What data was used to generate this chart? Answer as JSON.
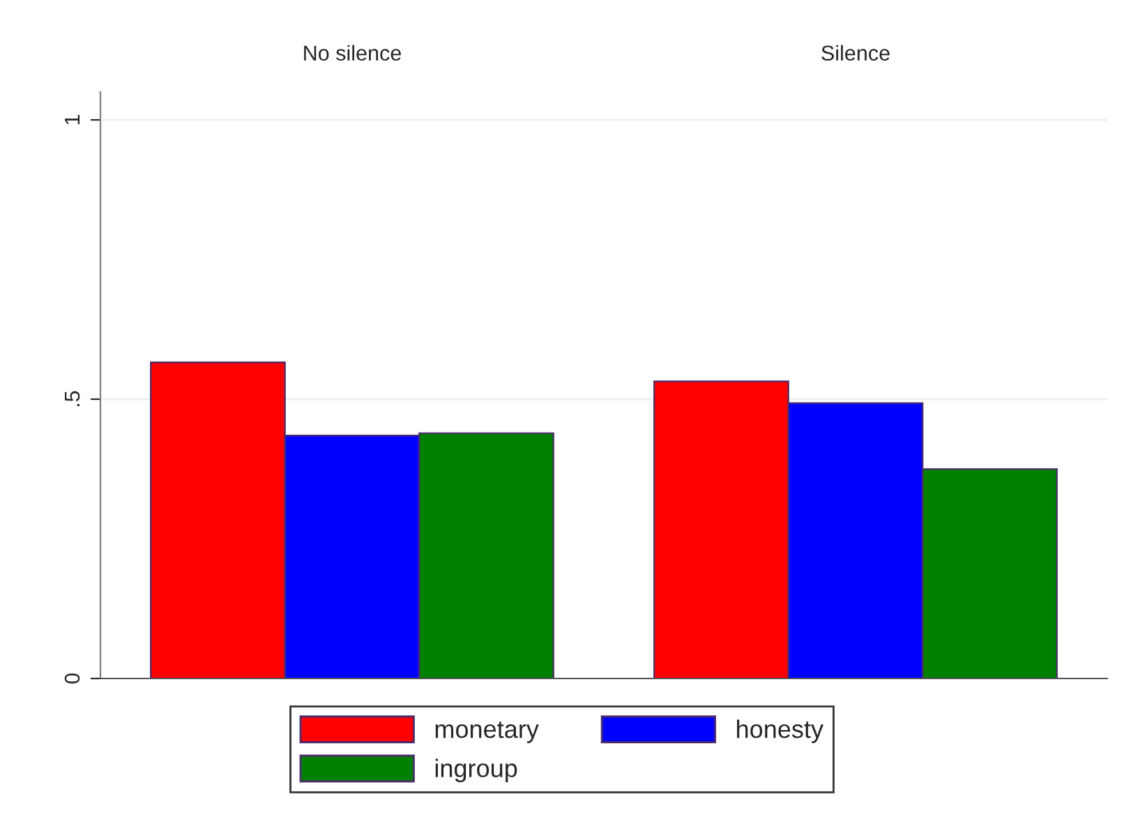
{
  "chart_data": {
    "type": "bar",
    "categories": [
      "No silence",
      "Silence"
    ],
    "series": [
      {
        "name": "monetary",
        "color": "#ff0000",
        "values": [
          0.566,
          0.532
        ]
      },
      {
        "name": "honesty",
        "color": "#0000ff",
        "values": [
          0.435,
          0.493
        ]
      },
      {
        "name": "ingroup",
        "color": "#008000",
        "values": [
          0.439,
          0.375
        ]
      }
    ],
    "ylim": [
      0,
      1.05
    ],
    "yticks": [
      0,
      {
        "value": 0.5,
        "label": ".5"
      },
      1
    ],
    "grid": "y",
    "legend": "bottom"
  }
}
